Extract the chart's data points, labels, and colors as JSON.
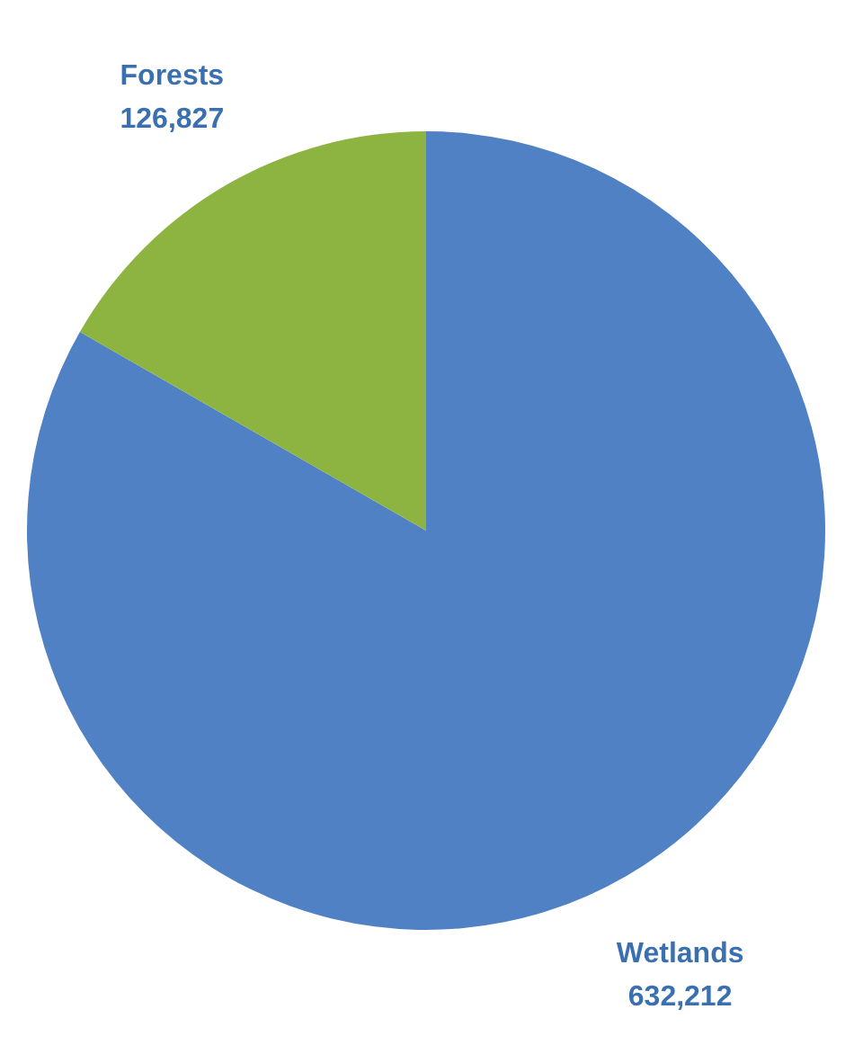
{
  "chart_data": {
    "type": "pie",
    "categories": [
      "Wetlands",
      "Forests"
    ],
    "values": [
      632212,
      126827
    ],
    "colors": [
      "#4f81c4",
      "#8db441"
    ],
    "value_labels": [
      "632,212",
      "126,827"
    ]
  }
}
